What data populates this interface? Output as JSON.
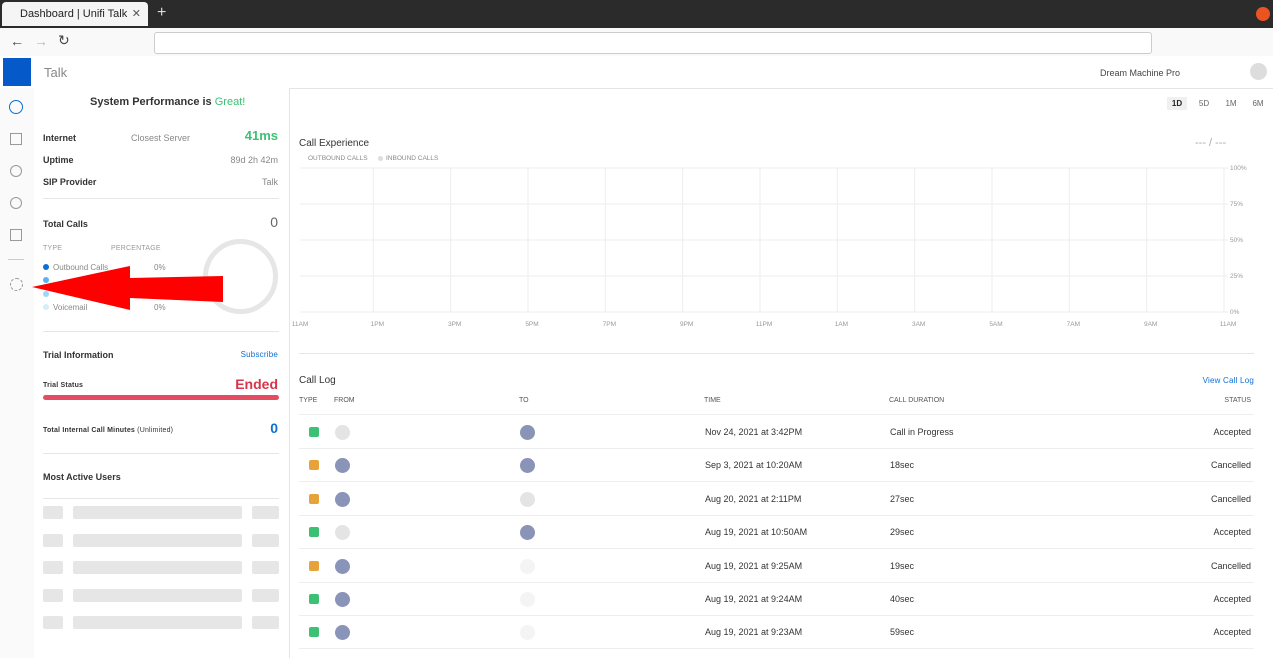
{
  "browser": {
    "tab_title": "Dashboard | Unifi Talk"
  },
  "header": {
    "app_name": "Talk",
    "device": "Dream Machine Pro"
  },
  "range_buttons": [
    "1D",
    "5D",
    "1M",
    "6M"
  ],
  "system": {
    "title_prefix": "System Performance is",
    "title_status": "Great!",
    "rows": [
      {
        "label": "Internet",
        "detail": "Closest Server",
        "value": "41ms"
      },
      {
        "label": "Uptime",
        "value": "89d 2h 42m"
      },
      {
        "label": "SIP Provider",
        "value": "Talk"
      }
    ]
  },
  "total_calls": {
    "label": "Total Calls",
    "value": "0",
    "col_type": "TYPE",
    "col_percentage": "PERCENTAGE",
    "items": [
      {
        "name": "Outbound Calls",
        "percent": "0%",
        "color": "#0a6fd6"
      },
      {
        "color": "#57b4ee"
      },
      {
        "color": "#9fd6f5"
      },
      {
        "name": "Voicemail",
        "percent": "0%",
        "color": "#d6eefb"
      }
    ]
  },
  "trial": {
    "title": "Trial Information",
    "link": "Subscribe",
    "status_label": "Trial Status",
    "status_value": "Ended",
    "minutes_label": "Total Internal Call Minutes",
    "minutes_note": "(Unlimited)",
    "minutes_value": "0"
  },
  "most_active": {
    "title": "Most Active Users"
  },
  "call_experience": {
    "title": "Call Experience",
    "legend": [
      "OUTBOUND CALLS",
      "INBOUND CALLS"
    ],
    "summary": "--- / ---",
    "y_labels": [
      "100%",
      "75%",
      "50%",
      "25%",
      "0%"
    ],
    "x_labels": [
      "11AM",
      "1PM",
      "3PM",
      "5PM",
      "7PM",
      "9PM",
      "11PM",
      "1AM",
      "3AM",
      "5AM",
      "7AM",
      "9AM",
      "11AM"
    ]
  },
  "call_log": {
    "title": "Call Log",
    "link": "View Call Log",
    "headers": [
      "TYPE",
      "FROM",
      "TO",
      "TIME",
      "CALL DURATION",
      "STATUS"
    ],
    "rows": [
      {
        "time": "Nov 24, 2021 at 3:42PM",
        "duration": "Call in Progress",
        "status": "Accepted",
        "color": "#3cc174"
      },
      {
        "time": "Sep 3, 2021 at 10:20AM",
        "duration": "18sec",
        "status": "Cancelled",
        "color": "#e8a23a"
      },
      {
        "time": "Aug 20, 2021 at 2:11PM",
        "duration": "27sec",
        "status": "Cancelled",
        "color": "#e8a23a"
      },
      {
        "time": "Aug 19, 2021 at 10:50AM",
        "duration": "29sec",
        "status": "Accepted",
        "color": "#3cc174"
      },
      {
        "time": "Aug 19, 2021 at 9:25AM",
        "duration": "19sec",
        "status": "Cancelled",
        "color": "#e8a23a"
      },
      {
        "time": "Aug 19, 2021 at 9:24AM",
        "duration": "40sec",
        "status": "Accepted",
        "color": "#3cc174"
      },
      {
        "time": "Aug 19, 2021 at 9:23AM",
        "duration": "59sec",
        "status": "Accepted",
        "color": "#3cc174"
      }
    ]
  }
}
